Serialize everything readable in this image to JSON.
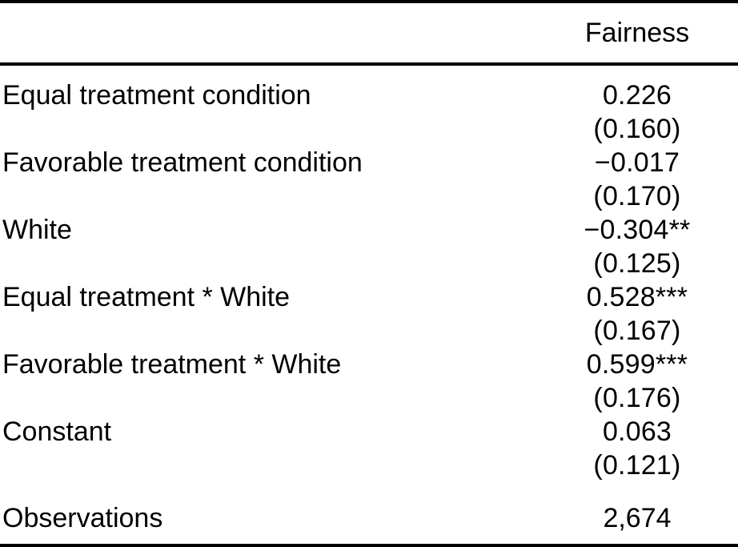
{
  "table": {
    "column_header": "Fairness",
    "rows": [
      {
        "label": "Equal treatment condition",
        "estimate": "0.226",
        "se": "(0.160)"
      },
      {
        "label": "Favorable treatment condition",
        "estimate": "−0.017",
        "se": "(0.170)"
      },
      {
        "label": "White",
        "estimate": "−0.304**",
        "se": "(0.125)"
      },
      {
        "label": "Equal treatment * White",
        "estimate": "0.528***",
        "se": "(0.167)"
      },
      {
        "label": "Favorable treatment * White",
        "estimate": "0.599***",
        "se": "(0.176)"
      },
      {
        "label": "Constant",
        "estimate": "0.063",
        "se": "(0.121)"
      }
    ],
    "footer": {
      "label": "Observations",
      "value": "2,674"
    }
  }
}
